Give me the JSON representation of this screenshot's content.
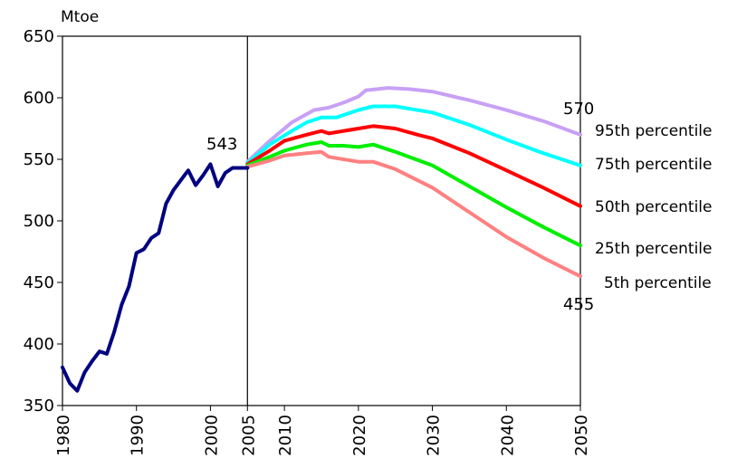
{
  "chart_data": {
    "type": "line",
    "title": "",
    "ylabel": "Mtoe",
    "xlabel": "",
    "xlim": [
      1980,
      2050
    ],
    "ylim": [
      350,
      650
    ],
    "y_ticks": [
      350,
      400,
      450,
      500,
      550,
      600,
      650
    ],
    "x_ticks": [
      1980,
      1990,
      2000,
      2005,
      2010,
      2020,
      2030,
      2040,
      2050
    ],
    "divider_x": 2005,
    "grid": false,
    "historical": {
      "name": "",
      "color": "#000080",
      "points": [
        [
          1980,
          381
        ],
        [
          1981,
          368
        ],
        [
          1982,
          362
        ],
        [
          1983,
          377
        ],
        [
          1984,
          386
        ],
        [
          1985,
          394
        ],
        [
          1986,
          392
        ],
        [
          1987,
          410
        ],
        [
          1988,
          432
        ],
        [
          1989,
          447
        ],
        [
          1990,
          474
        ],
        [
          1991,
          477
        ],
        [
          1992,
          486
        ],
        [
          1993,
          490
        ],
        [
          1994,
          514
        ],
        [
          1995,
          525
        ],
        [
          1996,
          533
        ],
        [
          1997,
          541
        ],
        [
          1998,
          529
        ],
        [
          1999,
          537
        ],
        [
          2000,
          546
        ],
        [
          2001,
          528
        ],
        [
          2002,
          539
        ],
        [
          2003,
          543
        ],
        [
          2004,
          543
        ],
        [
          2005,
          543
        ]
      ]
    },
    "series": [
      {
        "name": "95th percentile",
        "color": "#c8a0f5",
        "points": [
          [
            2005,
            548
          ],
          [
            2008,
            565
          ],
          [
            2011,
            580
          ],
          [
            2014,
            590
          ],
          [
            2016,
            592
          ],
          [
            2018,
            596
          ],
          [
            2020,
            601
          ],
          [
            2021,
            606
          ],
          [
            2024,
            608
          ],
          [
            2027,
            607
          ],
          [
            2030,
            605
          ],
          [
            2035,
            598
          ],
          [
            2040,
            590
          ],
          [
            2045,
            581
          ],
          [
            2050,
            570
          ]
        ]
      },
      {
        "name": "75th percentile",
        "color": "#00ffff",
        "points": [
          [
            2005,
            547
          ],
          [
            2008,
            562
          ],
          [
            2011,
            573
          ],
          [
            2013,
            580
          ],
          [
            2015,
            584
          ],
          [
            2017,
            584
          ],
          [
            2019,
            588
          ],
          [
            2020,
            590
          ],
          [
            2022,
            593
          ],
          [
            2025,
            593
          ],
          [
            2030,
            588
          ],
          [
            2035,
            578
          ],
          [
            2040,
            566
          ],
          [
            2045,
            555
          ],
          [
            2050,
            545
          ]
        ]
      },
      {
        "name": "50th percentile",
        "color": "#ff0000",
        "points": [
          [
            2005,
            546
          ],
          [
            2008,
            557
          ],
          [
            2010,
            565
          ],
          [
            2013,
            570
          ],
          [
            2015,
            573
          ],
          [
            2016,
            571
          ],
          [
            2018,
            573
          ],
          [
            2020,
            575
          ],
          [
            2022,
            577
          ],
          [
            2025,
            575
          ],
          [
            2028,
            570
          ],
          [
            2030,
            567
          ],
          [
            2035,
            555
          ],
          [
            2040,
            541
          ],
          [
            2045,
            527
          ],
          [
            2050,
            512
          ]
        ]
      },
      {
        "name": "25th percentile",
        "color": "#00ee00",
        "points": [
          [
            2005,
            545
          ],
          [
            2008,
            552
          ],
          [
            2010,
            557
          ],
          [
            2013,
            562
          ],
          [
            2015,
            564
          ],
          [
            2016,
            561
          ],
          [
            2018,
            561
          ],
          [
            2020,
            560
          ],
          [
            2022,
            562
          ],
          [
            2025,
            556
          ],
          [
            2030,
            545
          ],
          [
            2035,
            528
          ],
          [
            2040,
            511
          ],
          [
            2045,
            495
          ],
          [
            2050,
            480
          ]
        ]
      },
      {
        "name": "5th percentile",
        "color": "#ff8080",
        "points": [
          [
            2005,
            544
          ],
          [
            2008,
            549
          ],
          [
            2010,
            553
          ],
          [
            2013,
            555
          ],
          [
            2015,
            556
          ],
          [
            2016,
            552
          ],
          [
            2018,
            550
          ],
          [
            2020,
            548
          ],
          [
            2022,
            548
          ],
          [
            2025,
            542
          ],
          [
            2030,
            527
          ],
          [
            2035,
            507
          ],
          [
            2040,
            487
          ],
          [
            2045,
            470
          ],
          [
            2050,
            455
          ]
        ]
      }
    ],
    "annotations": [
      {
        "text": "543",
        "x": 2003,
        "y": 543
      },
      {
        "text": "570",
        "x": 2050,
        "y": 570
      },
      {
        "text": "455",
        "x": 2050,
        "y": 455
      }
    ]
  }
}
